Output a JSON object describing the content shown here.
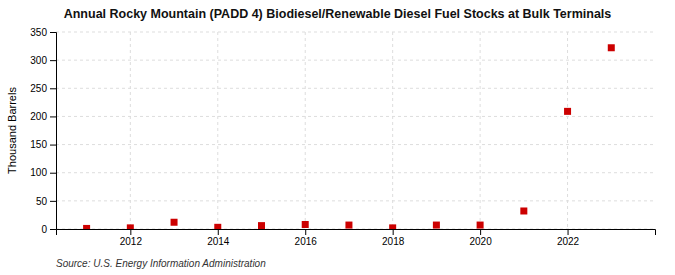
{
  "chart_data": {
    "type": "scatter",
    "title": "Annual Rocky Mountain (PADD 4) Biodiesel/Renewable Diesel Fuel Stocks at Bulk Terminals",
    "ylabel": "Thousand Barrels",
    "annotations": [
      "Source: U.S. Energy Information Administration"
    ],
    "x": [
      2011,
      2012,
      2013,
      2014,
      2015,
      2016,
      2017,
      2018,
      2019,
      2020,
      2021,
      2022,
      2023
    ],
    "values": [
      1,
      2,
      12,
      3,
      6,
      8,
      7,
      2,
      7,
      7,
      32,
      209,
      322
    ],
    "color": "#cc0000",
    "marker": "square",
    "xlim": [
      2010.3,
      2024.0
    ],
    "xticks": [
      2012,
      2014,
      2016,
      2018,
      2020,
      2022
    ],
    "ylim": [
      0,
      350
    ],
    "yticks": [
      0,
      50,
      100,
      150,
      200,
      250,
      300,
      350
    ],
    "grid": true
  }
}
